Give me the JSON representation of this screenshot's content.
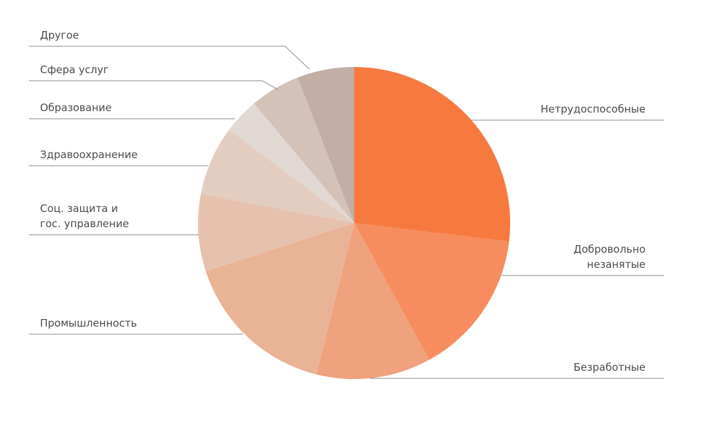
{
  "chart_data": {
    "type": "pie",
    "categories": [
      "Нетрудоспособные",
      "Добровольно\nнезанятые",
      "Безработные",
      "Промышленность",
      "Соц. защита и\nгос. управление",
      "Здравоохранение",
      "Образование",
      "Сфера услуг",
      "Другое"
    ],
    "values": [
      26.9,
      15.1,
      11.9,
      16.1,
      8.0,
      7.2,
      3.7,
      5.2,
      5.9
    ],
    "colors": [
      "#f67a40",
      "#f78d5e",
      "#efa27d",
      "#e9b396",
      "#e6c1ae",
      "#e3cdc1",
      "#e2d9d5",
      "#d4c1b7",
      "#c2aea5"
    ]
  }
}
